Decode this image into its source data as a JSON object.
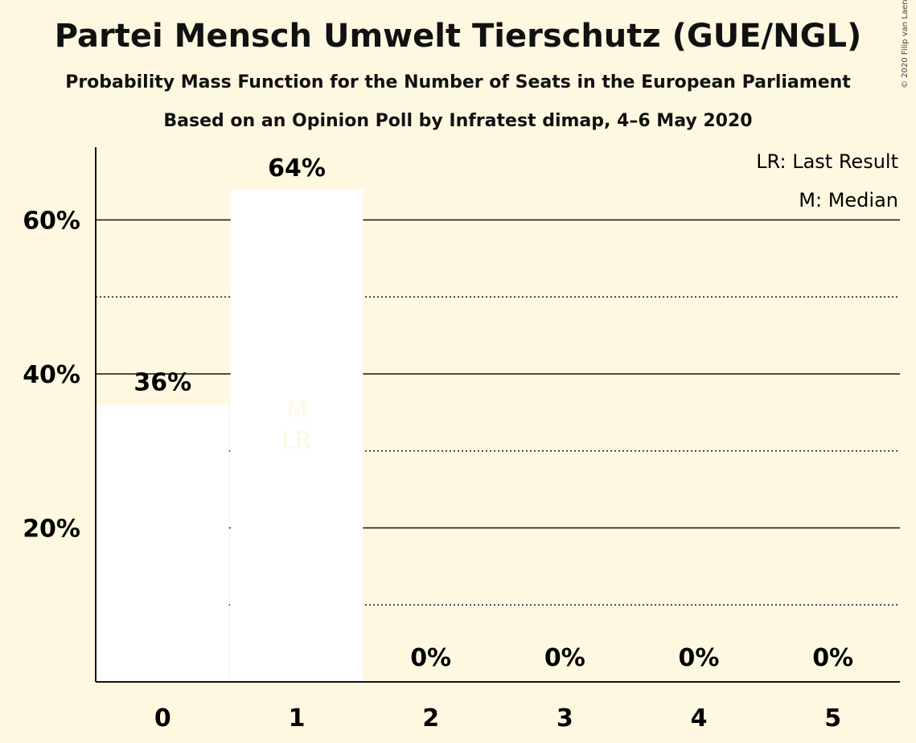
{
  "header": {
    "title": "Partei Mensch Umwelt Tierschutz (GUE/NGL)",
    "subtitle": "Probability Mass Function for the Number of Seats in the European Parliament",
    "subtitle2": "Based on an Opinion Poll by Infratest dimap, 4–6 May 2020",
    "copyright": "© 2020 Filip van Laenen"
  },
  "legend": {
    "last_result": "LR: Last Result",
    "median": "M: Median"
  },
  "chart_data": {
    "type": "bar",
    "categories": [
      "0",
      "1",
      "2",
      "3",
      "4",
      "5"
    ],
    "values": [
      36,
      64,
      0,
      0,
      0,
      0
    ],
    "value_labels": [
      "36%",
      "64%",
      "0%",
      "0%",
      "0%",
      "0%"
    ],
    "ylim": [
      0,
      70
    ],
    "y_ticks": [
      {
        "value": 20,
        "label": "20%"
      },
      {
        "value": 40,
        "label": "40%"
      },
      {
        "value": 60,
        "label": "60%"
      }
    ],
    "minor_gridlines": [
      10,
      30,
      50
    ],
    "median_label": "M",
    "last_result_label": "LR",
    "median_category": "1",
    "last_result_category": "1",
    "colors": {
      "bar": "#ffffff",
      "background": "#fff8e1",
      "grid": "#111111"
    }
  }
}
